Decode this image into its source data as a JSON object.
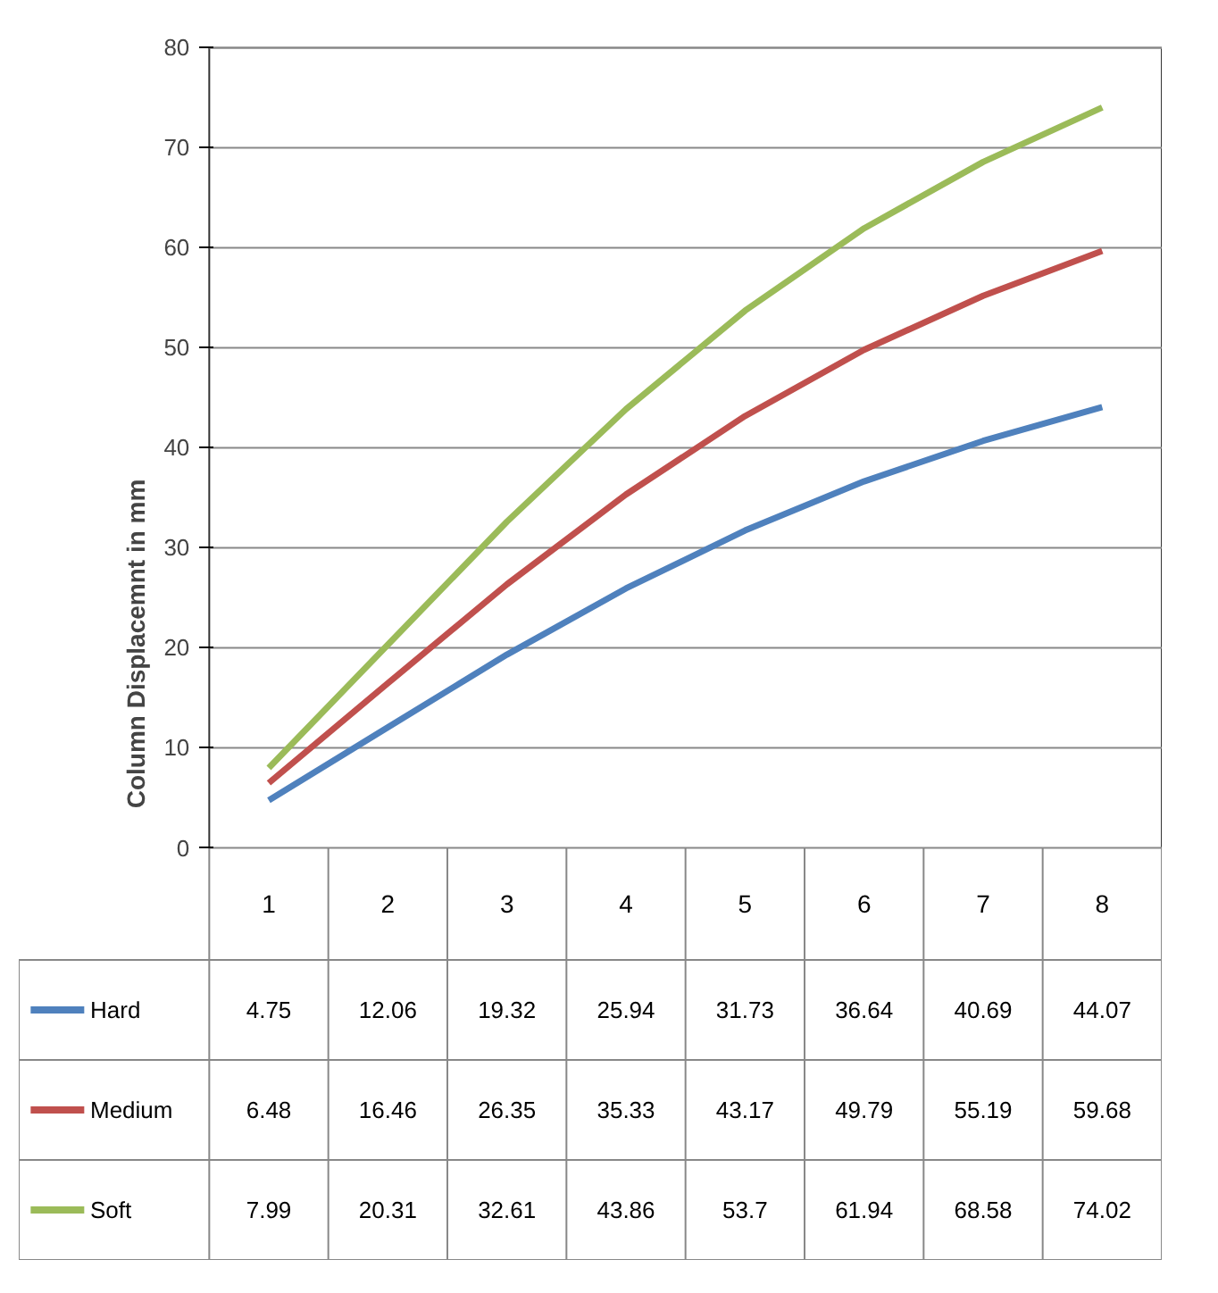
{
  "chart_data": {
    "type": "line",
    "ylabel": "Column Displacemnt in mm",
    "categories": [
      "1",
      "2",
      "3",
      "4",
      "5",
      "6",
      "7",
      "8"
    ],
    "series": [
      {
        "name": "Hard",
        "color": "#4f81bd",
        "values": [
          4.75,
          12.06,
          19.32,
          25.94,
          31.73,
          36.64,
          40.69,
          44.07
        ]
      },
      {
        "name": "Medium",
        "color": "#c0504d",
        "values": [
          6.48,
          16.46,
          26.35,
          35.33,
          43.17,
          49.79,
          55.19,
          59.68
        ]
      },
      {
        "name": "Soft",
        "color": "#9bbb59",
        "values": [
          7.99,
          20.31,
          32.61,
          43.86,
          53.7,
          61.94,
          68.58,
          74.02
        ]
      }
    ],
    "ylim": [
      0,
      80
    ],
    "yticks": [
      0,
      10,
      20,
      30,
      40,
      50,
      60,
      70,
      80
    ],
    "grid": "y",
    "legend": "bottom",
    "data_labels": true,
    "marker": "none",
    "line_style": "solid"
  }
}
